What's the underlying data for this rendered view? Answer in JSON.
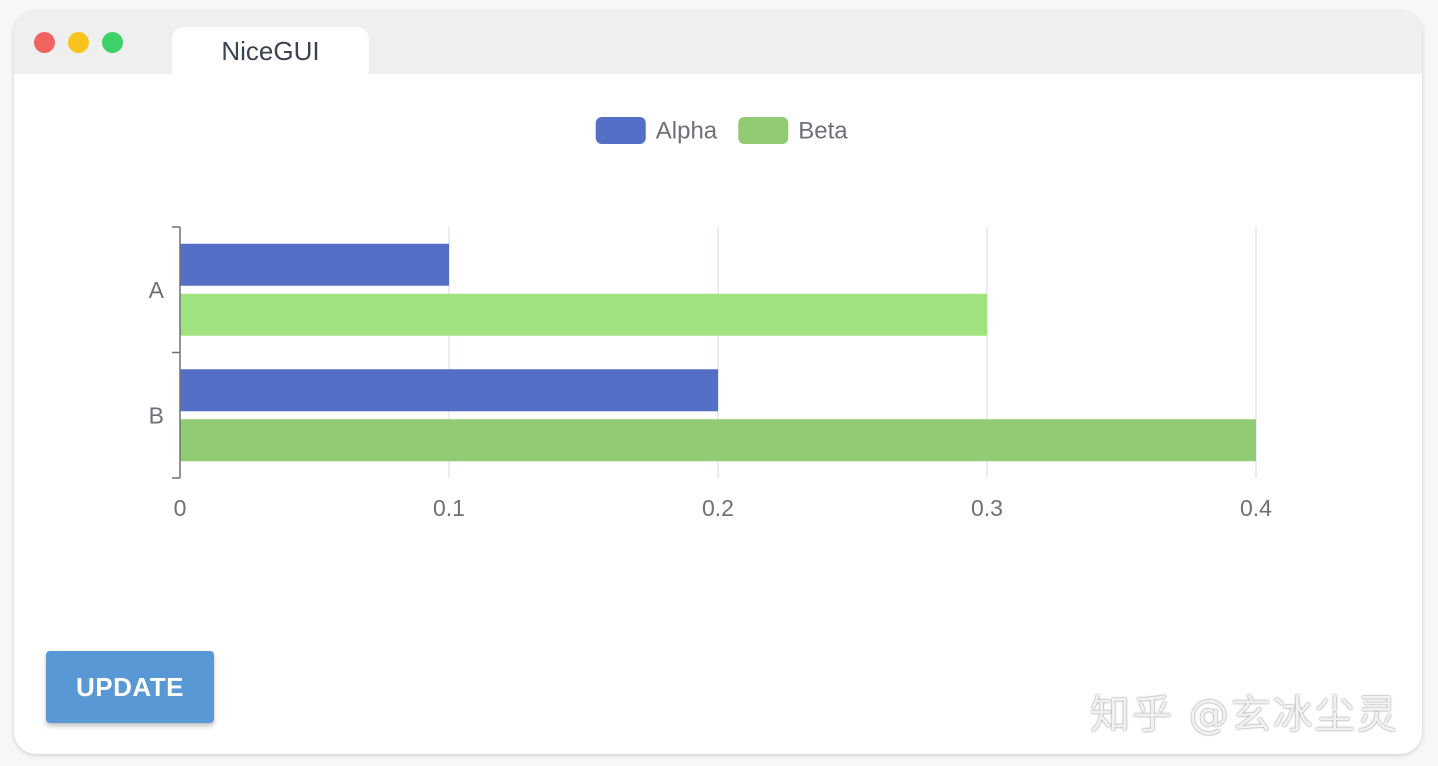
{
  "window": {
    "tab_title": "NiceGUI"
  },
  "colors": {
    "alpha": "#5470c6",
    "beta": "#91cc75",
    "beta_highlight": "#a0e27f",
    "button": "#5898d4"
  },
  "chart_data": {
    "type": "bar",
    "orientation": "horizontal",
    "categories": [
      "A",
      "B"
    ],
    "series": [
      {
        "name": "Alpha",
        "values": [
          0.1,
          0.2
        ]
      },
      {
        "name": "Beta",
        "values": [
          0.3,
          0.4
        ]
      }
    ],
    "x_ticks": [
      "0",
      "0.1",
      "0.2",
      "0.3",
      "0.4"
    ],
    "xlim": [
      0,
      0.4
    ],
    "legend": [
      "Alpha",
      "Beta"
    ],
    "legend_position": "top-center",
    "grid": "vertical"
  },
  "actions": {
    "update_label": "UPDATE"
  },
  "watermark": {
    "text": "知乎 @玄冰尘灵"
  }
}
